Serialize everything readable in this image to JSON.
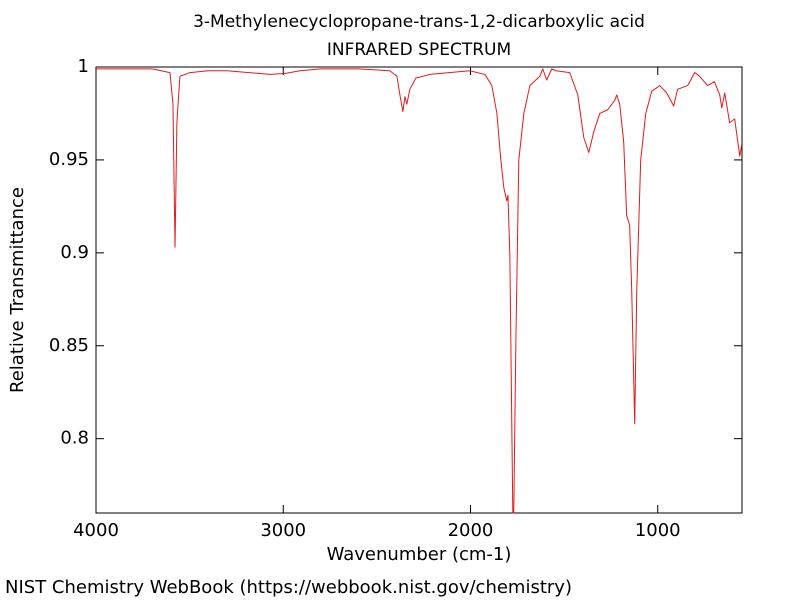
{
  "chart_data": {
    "type": "line",
    "title": "3-Methylenecyclopropane-trans-1,2-dicarboxylic acid",
    "subtitle": "INFRARED SPECTRUM",
    "x_label": "Wavenumber (cm-1)",
    "y_label": "Relative Transmittance",
    "credit": "NIST Chemistry WebBook (https://webbook.nist.gov/chemistry)",
    "xlim": [
      4000,
      550
    ],
    "ylim": [
      0.76,
      1.0
    ],
    "xticks": [
      4000,
      3000,
      2000,
      1000
    ],
    "yticks": [
      {
        "value": 1.0,
        "label": "1"
      },
      0.95,
      0.9,
      0.85,
      0.8
    ],
    "series": [
      {
        "color": "#e31a1c",
        "x": [
          4000,
          3765,
          3700,
          3605,
          3589,
          3578,
          3568,
          3552,
          3498,
          3400,
          3300,
          3071,
          2991,
          2911,
          2800,
          2600,
          2431,
          2393,
          2377,
          2361,
          2350,
          2340,
          2324,
          2292,
          2217,
          2004,
          1923,
          1886,
          1859,
          1838,
          1822,
          1806,
          1800,
          1790,
          1774,
          1769,
          1758,
          1742,
          1715,
          1683,
          1630,
          1614,
          1593,
          1566,
          1544,
          1470,
          1427,
          1395,
          1368,
          1342,
          1310,
          1267,
          1230,
          1219,
          1203,
          1182,
          1166,
          1150,
          1139,
          1123,
          1112,
          1091,
          1064,
          1032,
          989,
          952,
          915,
          894,
          840,
          803,
          776,
          734,
          697,
          669,
          658,
          642,
          616,
          589,
          562,
          552
        ],
        "values": [
          0.999,
          0.999,
          0.999,
          0.997,
          0.98,
          0.903,
          0.97,
          0.995,
          0.997,
          0.998,
          0.998,
          0.996,
          0.9965,
          0.998,
          0.999,
          0.999,
          0.998,
          0.995,
          0.985,
          0.976,
          0.984,
          0.98,
          0.988,
          0.994,
          0.996,
          0.998,
          0.996,
          0.99,
          0.975,
          0.95,
          0.935,
          0.928,
          0.931,
          0.9,
          0.76,
          0.76,
          0.85,
          0.95,
          0.975,
          0.99,
          0.995,
          0.999,
          0.993,
          0.999,
          0.998,
          0.997,
          0.985,
          0.962,
          0.954,
          0.965,
          0.975,
          0.977,
          0.982,
          0.985,
          0.98,
          0.96,
          0.92,
          0.915,
          0.88,
          0.808,
          0.88,
          0.95,
          0.975,
          0.987,
          0.99,
          0.986,
          0.979,
          0.988,
          0.99,
          0.997,
          0.995,
          0.99,
          0.992,
          0.985,
          0.978,
          0.986,
          0.97,
          0.972,
          0.952,
          0.958
        ]
      }
    ]
  }
}
